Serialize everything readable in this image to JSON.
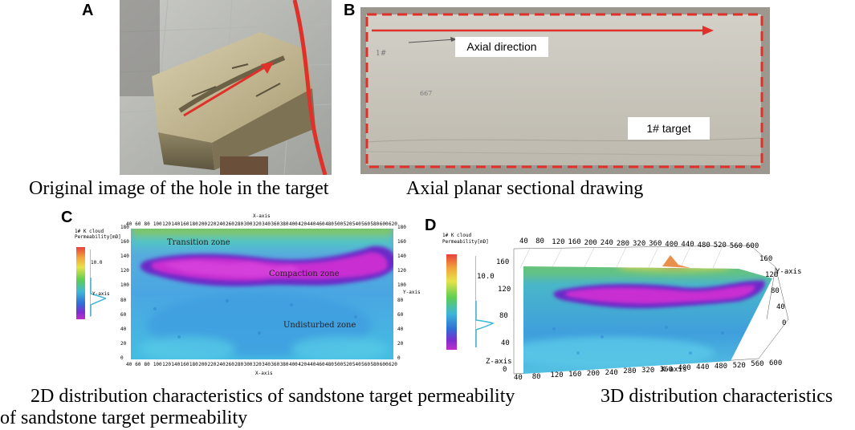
{
  "panels": {
    "a": {
      "letter": "A",
      "caption": "Original image of the hole in the target"
    },
    "b": {
      "letter": "B",
      "caption": "Axial planar sectional drawing",
      "axial_label": "Axial direction",
      "target_label": "1# target",
      "note1": "1#",
      "note2": "667"
    },
    "c": {
      "letter": "C",
      "caption": "2D distribution characteristics of sandstone target permeability",
      "legend_title_1": "1# K cloud",
      "legend_title_2": "Permeability[mD]",
      "legend_value": "10.0",
      "legend_axis": "Y-axis",
      "top_axis": "X-axis",
      "bottom_axis": "X-axis",
      "right_axis": "Y-axis",
      "x_ticks": [
        "40",
        "60",
        "80",
        "100",
        "120",
        "140",
        "160",
        "180",
        "200",
        "220",
        "240",
        "260",
        "280",
        "300",
        "320",
        "340",
        "360",
        "380",
        "400",
        "420",
        "440",
        "460",
        "480",
        "500",
        "520",
        "540",
        "560",
        "580",
        "600",
        "620"
      ],
      "y_ticks": [
        "180",
        "160",
        "140",
        "120",
        "100",
        "80",
        "60",
        "40",
        "20",
        "0"
      ],
      "zones": [
        "Transition zone",
        "Compaction zone",
        "Undisturbed zone"
      ]
    },
    "d": {
      "letter": "D",
      "caption": "3D distribution characteristics",
      "legend_title_1": "1# K cloud",
      "legend_title_2": "Permeability[mD]",
      "legend_value": "10.0",
      "x_axis": "X-axis",
      "y_axis": "Y-axis",
      "z_axis": "Z-axis",
      "top_x_ticks": [
        "40",
        "80",
        "120",
        "160",
        "200",
        "240",
        "280",
        "320",
        "360",
        "400",
        "440",
        "480",
        "520",
        "560",
        "600"
      ],
      "bottom_x_ticks": [
        "40",
        "80",
        "120",
        "160",
        "200",
        "240",
        "280",
        "320",
        "360",
        "400",
        "440",
        "480",
        "520",
        "560",
        "600"
      ],
      "y_ticks": [
        "160",
        "120",
        "80",
        "40",
        "0"
      ],
      "z_ticks": [
        "160",
        "120",
        "80",
        "40",
        "0"
      ]
    }
  },
  "caption_wrap": "of sandstone target permeability"
}
